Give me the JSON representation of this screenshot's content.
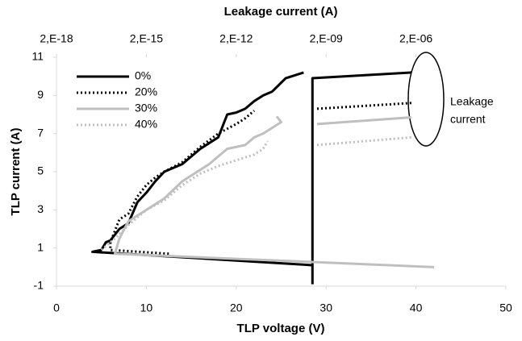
{
  "chart_data": {
    "type": "line",
    "xlabel": "TLP voltage (V)",
    "ylabel": "TLP current (A)",
    "x2label": "Leakage current (A)",
    "xlim": [
      0,
      50
    ],
    "xticks": [
      0,
      10,
      20,
      30,
      40,
      50
    ],
    "ylim": [
      -1,
      11
    ],
    "yticks": [
      -1,
      1,
      3,
      5,
      7,
      9,
      11
    ],
    "x2lim": [
      2e-18,
      0.002
    ],
    "x2scale": "log",
    "x2ticks": [
      {
        "value": 2e-18,
        "label": "2,E-18"
      },
      {
        "value": 2e-15,
        "label": "2,E-15"
      },
      {
        "value": 2e-12,
        "label": "2,E-12"
      },
      {
        "value": 2e-09,
        "label": "2,E-09"
      },
      {
        "value": 2e-06,
        "label": "2,E-06"
      }
    ],
    "grid": false,
    "legend": "top-left",
    "annotation": [
      "Leakage",
      "current"
    ],
    "series": [
      {
        "name": "0%",
        "color": "#000000",
        "dash": "solid",
        "x": [
          28.5,
          4,
          5,
          5.5,
          6,
          7,
          8,
          9,
          10,
          11,
          12,
          14,
          16,
          18,
          19,
          20,
          21,
          22,
          23,
          24,
          25.5,
          27.5
        ],
        "values": [
          0.1,
          0.8,
          0.9,
          1.3,
          1.4,
          2,
          2.3,
          3.4,
          3.9,
          4.5,
          5,
          5.4,
          6.2,
          6.8,
          8,
          8.1,
          8.3,
          8.7,
          9,
          9.2,
          9.9,
          10.2
        ],
        "leakage": {
          "x": [
            7e-10,
            7e-10,
            1.4e-06
          ],
          "values": [
            -0.9,
            9.9,
            10.2
          ]
        }
      },
      {
        "name": "20%",
        "color": "#000000",
        "dash": "dotted",
        "x": [
          12.5,
          6,
          6,
          7,
          8,
          9,
          10,
          11,
          12,
          14,
          16,
          18,
          20,
          21,
          22
        ],
        "values": [
          0.7,
          0.9,
          1.3,
          2.5,
          2.8,
          3.7,
          4.3,
          4.7,
          5,
          5.5,
          6.3,
          7,
          7.5,
          7.8,
          8.2
        ],
        "leakage": {
          "x": [
            1e-09,
            1.4e-06
          ],
          "values": [
            8.3,
            8.6
          ]
        }
      },
      {
        "name": "30%",
        "color": "#bfbfbf",
        "dash": "solid",
        "x": [
          42,
          6.5,
          7,
          8,
          10,
          12,
          14,
          15,
          17,
          19,
          21,
          22,
          23,
          25,
          24.5
        ],
        "values": [
          0,
          0.7,
          1.5,
          2.4,
          3,
          3.6,
          4.5,
          4.8,
          5.4,
          6.2,
          6.4,
          6.8,
          7,
          7.6,
          7.9
        ],
        "leakage": {
          "x": [
            1e-09,
            1.4e-06
          ],
          "values": [
            7.5,
            7.85
          ]
        }
      },
      {
        "name": "40%",
        "color": "#bfbfbf",
        "dash": "dotted",
        "x": [
          5,
          6.5,
          8,
          10,
          12,
          14,
          16,
          18,
          20,
          22,
          23,
          23.5
        ],
        "values": [
          0.9,
          1.5,
          2.2,
          3,
          3.5,
          4.3,
          4.9,
          5.3,
          5.6,
          5.9,
          6.2,
          6.6
        ],
        "leakage": {
          "x": [
            1e-09,
            1.4e-06
          ],
          "values": [
            6.4,
            6.8
          ]
        }
      }
    ]
  }
}
